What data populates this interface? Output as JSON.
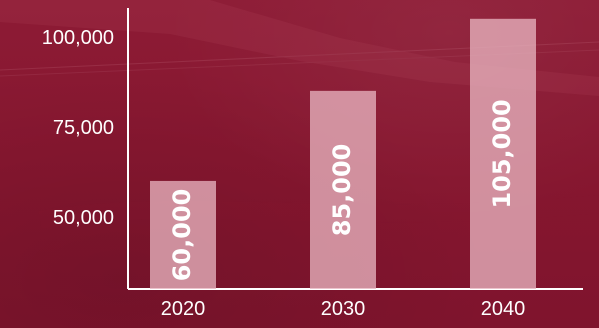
{
  "chart_data": {
    "type": "bar",
    "categories": [
      "2020",
      "2030",
      "2040"
    ],
    "values": [
      60000,
      85000,
      105000
    ],
    "value_labels": [
      "60,000",
      "85,000",
      "105,000"
    ],
    "y_ticks": [
      {
        "value": 50000,
        "label": "50,000"
      },
      {
        "value": 75000,
        "label": "75,000"
      },
      {
        "value": 100000,
        "label": "100,000"
      }
    ],
    "title": "",
    "xlabel": "",
    "ylabel": "",
    "ylim": [
      30000,
      108000
    ],
    "grid": false,
    "legend": "none",
    "colors": {
      "background": "#8a1a33",
      "bar": "#e7b2be",
      "text": "#ffffff",
      "axis": "#ffffff"
    }
  }
}
